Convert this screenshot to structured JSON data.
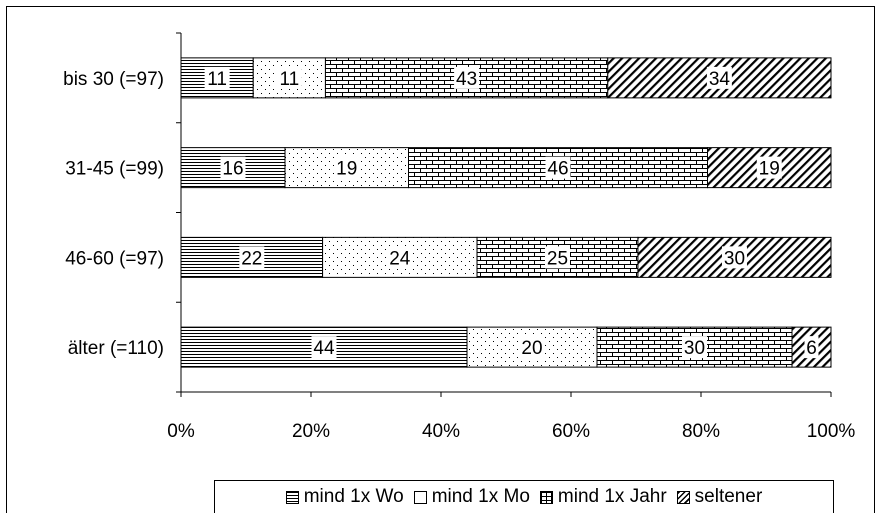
{
  "chart_data": {
    "type": "bar",
    "orientation": "horizontal",
    "stacked": "percent",
    "categories": [
      "bis 30 (=97)",
      "31-45 (=99)",
      "46-60 (=97)",
      "älter (=110)"
    ],
    "series": [
      {
        "name": "mind 1x Wo",
        "values": [
          11,
          16,
          22,
          44
        ],
        "pattern": "horizontal-lines"
      },
      {
        "name": "mind 1x Mo",
        "values": [
          11,
          19,
          24,
          20
        ],
        "pattern": "dots"
      },
      {
        "name": "mind 1x Jahr",
        "values": [
          43,
          46,
          25,
          30
        ],
        "pattern": "bricks"
      },
      {
        "name": "seltener",
        "values": [
          34,
          19,
          30,
          6
        ],
        "pattern": "diagonal-lines"
      }
    ],
    "xticks": [
      "0%",
      "20%",
      "40%",
      "60%",
      "80%",
      "100%"
    ],
    "xlim": [
      0,
      100
    ],
    "grid": false,
    "legend_position": "bottom",
    "colors": {
      "bar_fill": "#ffffff",
      "pattern": "#000000",
      "outline": "#000000"
    }
  }
}
